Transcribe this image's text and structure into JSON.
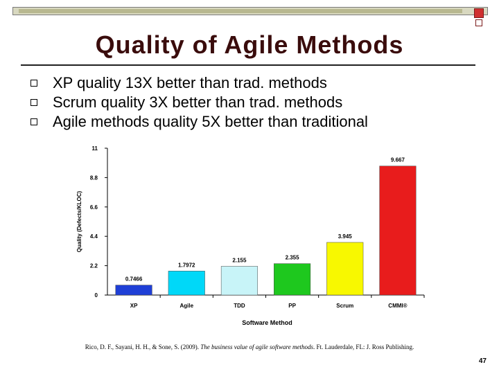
{
  "slide": {
    "title": "Quality of Agile Methods",
    "bullets": [
      "XP quality 13X better than trad. methods",
      "Scrum quality 3X better than trad. methods",
      "Agile methods quality 5X better than traditional"
    ],
    "citation_pre": "Rico, D. F., Sayani, H. H., & Sone, S. (2009). ",
    "citation_italic": "The business value of agile software methods",
    "citation_post": ". Ft. Lauderdale, FL: J. Ross Publishing.",
    "page_number": "47"
  },
  "chart_data": {
    "type": "bar",
    "categories": [
      "XP",
      "Agile",
      "TDD",
      "PP",
      "Scrum",
      "CMMI®"
    ],
    "values": [
      0.7466,
      1.7972,
      2.155,
      2.355,
      3.945,
      9.667
    ],
    "value_labels": [
      "0.7466",
      "1.7972",
      "2.155",
      "2.355",
      "3.945",
      "9.667"
    ],
    "colors": [
      "#1f3fd6",
      "#00d8f8",
      "#c8f4f8",
      "#1ec81e",
      "#f8f800",
      "#e81c1c"
    ],
    "xlabel": "Software Method",
    "ylabel": "Quality (Defects/KLOC)",
    "ylim": [
      0,
      11
    ],
    "yticks": [
      0,
      2.2,
      4.4,
      6.6,
      8.8,
      11
    ],
    "ytick_labels": [
      "0",
      "2.2",
      "4.4",
      "6.6",
      "8.8",
      "11"
    ],
    "grid": false,
    "title": ""
  }
}
